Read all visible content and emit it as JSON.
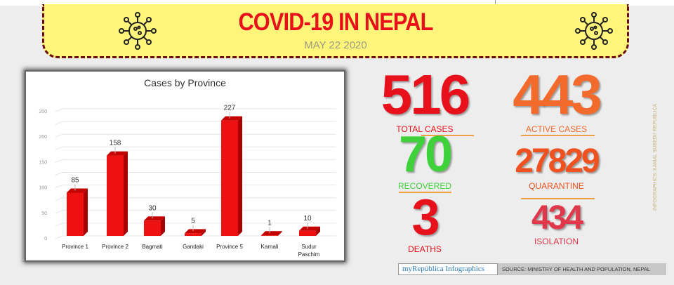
{
  "header": {
    "title": "COVID-19 IN NEPAL",
    "date": "MAY 22 2020"
  },
  "stats": [
    {
      "value": "516",
      "label": "TOTAL CASES",
      "color": "#e8111b"
    },
    {
      "value": "443",
      "label": "ACTIVE CASES",
      "color": "#f26b2d"
    },
    {
      "value": "70",
      "label": "RECOVERED",
      "color": "#3fd13a"
    },
    {
      "value": "27829",
      "label": "QUARANTINE",
      "color": "#f0521f"
    },
    {
      "value": "3",
      "label": "DEATHS",
      "color": "#e8111b"
    },
    {
      "value": "434",
      "label": "ISOLATION",
      "color": "#e0384a"
    }
  ],
  "credit": "INFOGRAPHICS: KAMAL SUBEDI/ REPUBLICA",
  "footer": {
    "logo": "myRepública Infographics",
    "source": "SOURCE:  MINISTRY OF HEALTH AND POPULATION, NEPAL"
  },
  "chart_data": {
    "type": "bar",
    "title": "Cases by Province",
    "categories": [
      "Province 1",
      "Province 2",
      "Bagmati",
      "Gandaki",
      "Province 5",
      "Karnali",
      "Sudur Paschim"
    ],
    "values": [
      85,
      158,
      30,
      5,
      227,
      1,
      10
    ],
    "yticks": [
      0,
      50,
      100,
      150,
      200,
      250
    ],
    "ylim": [
      0,
      250
    ],
    "grid": true,
    "bar_color": "#ee1111",
    "style": "3d"
  }
}
